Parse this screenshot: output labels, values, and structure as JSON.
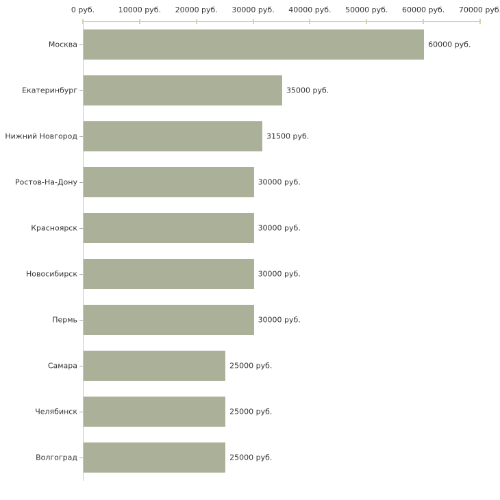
{
  "chart_data": {
    "type": "bar",
    "orientation": "horizontal",
    "title": "",
    "xlabel": "",
    "ylabel": "",
    "categories": [
      "Москва",
      "Екатеринбург",
      "Нижний Новгород",
      "Ростов-На-Дону",
      "Красноярск",
      "Новосибирск",
      "Пермь",
      "Самара",
      "Челябинск",
      "Волгоград"
    ],
    "values": [
      60000,
      35000,
      31500,
      30000,
      30000,
      30000,
      30000,
      25000,
      25000,
      25000
    ],
    "value_labels": [
      "60000 руб.",
      "35000 руб.",
      "31500 руб.",
      "30000 руб.",
      "30000 руб.",
      "30000 руб.",
      "30000 руб.",
      "25000 руб.",
      "25000 руб.",
      "25000 руб."
    ],
    "x_axis": {
      "position": "top",
      "min": 0,
      "max": 70000,
      "ticks": [
        0,
        10000,
        20000,
        30000,
        40000,
        50000,
        60000,
        70000
      ],
      "tick_labels": [
        "0 руб.",
        "10000 руб.",
        "20000 руб.",
        "30000 руб.",
        "40000 руб.",
        "50000 руб.",
        "60000 руб.",
        "70000 руб."
      ]
    },
    "grid": false,
    "legend": false,
    "colors": {
      "bar": "#abb199",
      "axis_line": "#c9c9c9",
      "x_tick": "#d2d4aa",
      "y_tick": "#a8a8a8",
      "text": "#333333",
      "background": "#ffffff"
    }
  }
}
